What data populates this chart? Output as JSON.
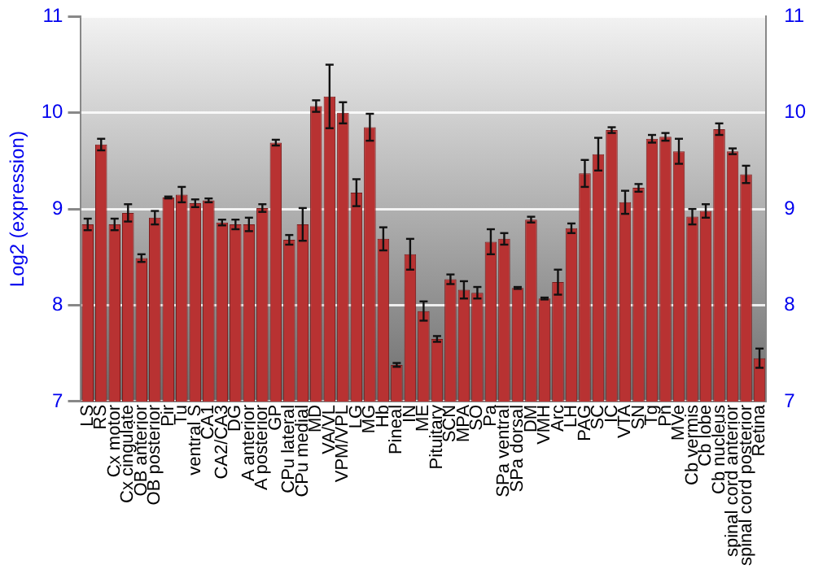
{
  "chart_data": {
    "type": "bar",
    "ylabel": "Log2 (expression)",
    "categories": [
      "LS",
      "RS",
      "Cx motor",
      "Cx cingulate",
      "OB anterior",
      "OB posterior",
      "Pir",
      "Tu",
      "ventral S",
      "CA1",
      "CA2/CA3",
      "DG",
      "A anterior",
      "A posterior",
      "GP",
      "CPu lateral",
      "CPu medial",
      "MD",
      "VA/VL",
      "VPM/VPL",
      "LG",
      "MG",
      "Hb",
      "Pineal",
      "IN",
      "ME",
      "Pituitary",
      "SCN",
      "MPA",
      "SO",
      "Pa",
      "SPa ventral",
      "SPa dorsal",
      "DM",
      "VMH",
      "Arc",
      "LH",
      "PAG",
      "SC",
      "IC",
      "VTA",
      "SN",
      "Tg",
      "Pn",
      "MVe",
      "Cb vermis",
      "Cb lobe",
      "Cb nucleus",
      "spinal cord anterior",
      "spinal cord posterior",
      "Retina"
    ],
    "values": [
      8.84,
      9.67,
      8.84,
      8.96,
      8.49,
      8.91,
      9.12,
      9.15,
      9.06,
      9.09,
      8.86,
      8.84,
      8.84,
      9.01,
      9.69,
      8.68,
      8.84,
      10.07,
      10.17,
      10.0,
      9.17,
      9.85,
      8.69,
      7.38,
      8.53,
      7.94,
      7.65,
      8.27,
      8.16,
      8.13,
      8.66,
      8.69,
      8.18,
      8.89,
      8.07,
      8.24,
      8.8,
      9.37,
      9.57,
      9.82,
      9.07,
      9.22,
      9.73,
      9.75,
      9.6,
      8.92,
      8.98,
      9.83,
      9.6,
      9.36,
      7.45
    ],
    "errors": [
      0.06,
      0.06,
      0.06,
      0.09,
      0.04,
      0.07,
      0.01,
      0.08,
      0.04,
      0.02,
      0.03,
      0.05,
      0.07,
      0.04,
      0.03,
      0.05,
      0.17,
      0.06,
      0.33,
      0.11,
      0.14,
      0.14,
      0.12,
      0.02,
      0.16,
      0.1,
      0.03,
      0.05,
      0.09,
      0.06,
      0.13,
      0.06,
      0.01,
      0.03,
      0.01,
      0.13,
      0.05,
      0.14,
      0.17,
      0.03,
      0.12,
      0.04,
      0.04,
      0.04,
      0.13,
      0.08,
      0.07,
      0.06,
      0.03,
      0.09,
      0.1
    ],
    "color": "#b83232",
    "ylim": [
      7,
      11
    ],
    "yticks": [
      7,
      8,
      9,
      10,
      11
    ],
    "y2lim": [
      7,
      11
    ],
    "y2ticks": [
      7,
      8,
      9,
      10,
      11
    ],
    "grid": "y",
    "legend": false
  }
}
